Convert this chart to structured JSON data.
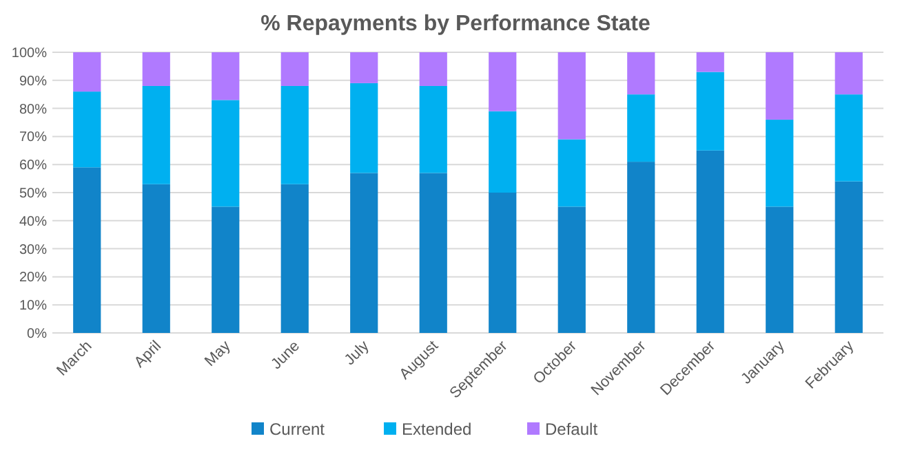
{
  "chart_data": {
    "type": "bar",
    "title": "% Repayments by Performance State",
    "stacked": true,
    "categories": [
      "March",
      "April",
      "May",
      "June",
      "July",
      "August",
      "September",
      "October",
      "November",
      "December",
      "January",
      "February"
    ],
    "series": [
      {
        "name": "Current",
        "color": "#1184c9",
        "values": [
          59,
          53,
          45,
          53,
          57,
          57,
          50,
          45,
          61,
          65,
          45,
          54
        ]
      },
      {
        "name": "Extended",
        "color": "#00b0f0",
        "values": [
          27,
          35,
          38,
          35,
          32,
          31,
          29,
          24,
          24,
          28,
          31,
          31
        ]
      },
      {
        "name": "Default",
        "color": "#b07aff",
        "values": [
          14,
          12,
          17,
          12,
          11,
          12,
          21,
          31,
          15,
          7,
          24,
          15
        ]
      }
    ],
    "ylim": [
      0,
      100
    ],
    "yticks": [
      {
        "value": 0,
        "label": "0%"
      },
      {
        "value": 10,
        "label": "10%"
      },
      {
        "value": 20,
        "label": "20%"
      },
      {
        "value": 30,
        "label": "30%"
      },
      {
        "value": 40,
        "label": "40%"
      },
      {
        "value": 50,
        "label": "50%"
      },
      {
        "value": 60,
        "label": "60%"
      },
      {
        "value": 70,
        "label": "70%"
      },
      {
        "value": 80,
        "label": "80%"
      },
      {
        "value": 90,
        "label": "90%"
      },
      {
        "value": 100,
        "label": "100%"
      }
    ],
    "grid": "y",
    "legend": "bottom"
  }
}
